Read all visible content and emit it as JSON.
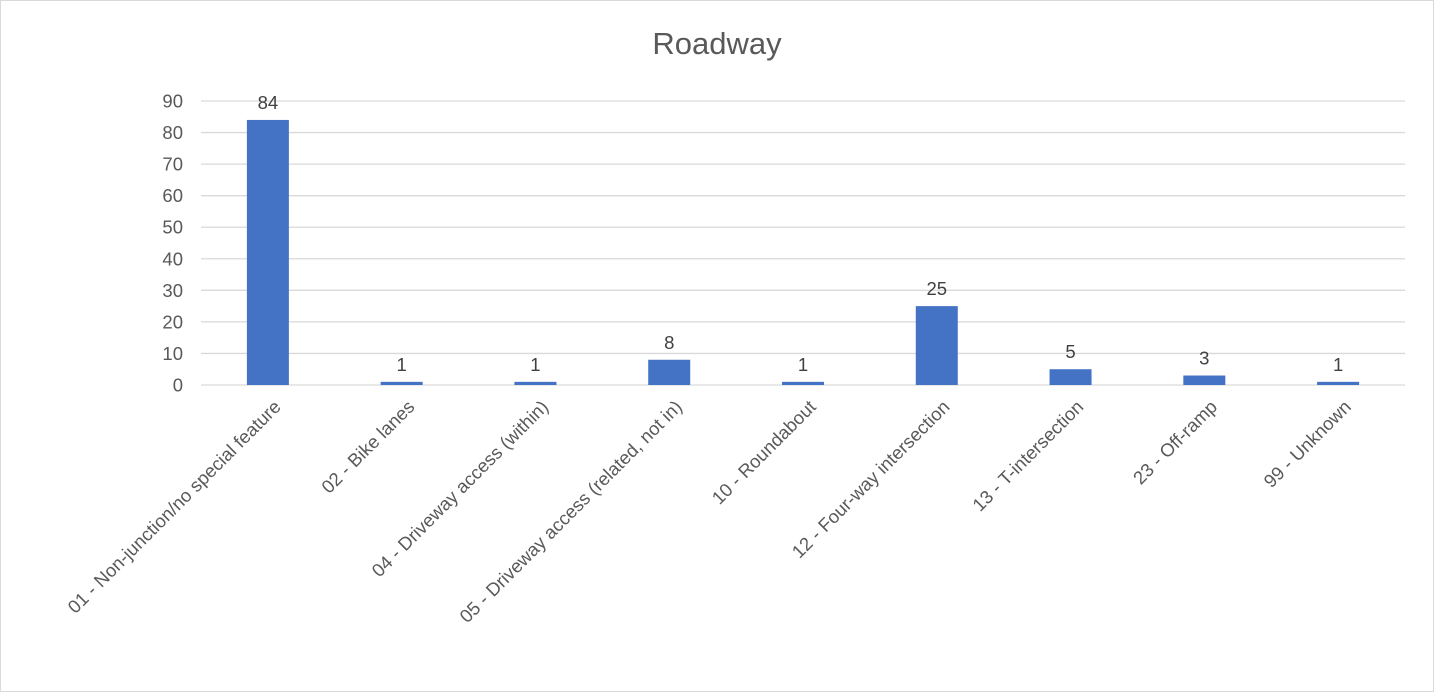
{
  "chart_data": {
    "type": "bar",
    "title": "Roadway",
    "xlabel": "",
    "ylabel": "",
    "categories": [
      "01 - Non-junction/no special feature",
      "02 - Bike lanes",
      "04 - Driveway access (within)",
      "05 - Driveway access (related, not in)",
      "10 - Roundabout",
      "12 - Four-way intersection",
      "13 - T-intersection",
      "23 - Off-ramp",
      "99 - Unknown"
    ],
    "values": [
      84,
      1,
      1,
      8,
      1,
      25,
      5,
      3,
      1
    ],
    "ylim": [
      0,
      90
    ],
    "yticks": [
      0,
      10,
      20,
      30,
      40,
      50,
      60,
      70,
      80,
      90
    ],
    "grid": true,
    "legend": "none",
    "data_labels": true,
    "colors": {
      "bar": "#4472c4",
      "gridline": "#d9d9d9",
      "text": "#595959",
      "data_label": "#404040"
    }
  }
}
